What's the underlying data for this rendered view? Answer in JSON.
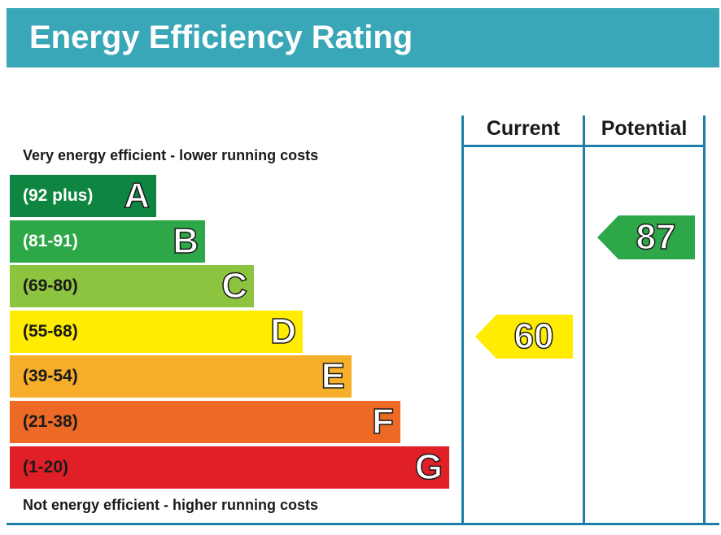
{
  "title": "Energy Efficiency Rating",
  "columns": {
    "current": "Current",
    "potential": "Potential"
  },
  "captions": {
    "top": "Very energy efficient - lower running costs",
    "bottom": "Not energy efficient - higher running costs"
  },
  "chart_data": {
    "type": "bar",
    "categories": [
      "A",
      "B",
      "C",
      "D",
      "E",
      "F",
      "G"
    ],
    "ranges": [
      "(92 plus)",
      "(81-91)",
      "(69-80)",
      "(55-68)",
      "(39-54)",
      "(21-38)",
      "(1-20)"
    ],
    "colors": [
      "#0e8540",
      "#2ea748",
      "#8cc43f",
      "#ffec00",
      "#f7ae2b",
      "#ec6a25",
      "#e11f26"
    ],
    "range_text_colors": [
      "#ffffff",
      "#ffffff",
      "#1a1a1a",
      "#1a1a1a",
      "#1a1a1a",
      "#1a1a1a",
      "#1a1a1a"
    ],
    "current": {
      "value": 60,
      "band": "D",
      "color": "#ffec00"
    },
    "potential": {
      "value": 87,
      "band": "B",
      "color": "#2ea748"
    }
  }
}
